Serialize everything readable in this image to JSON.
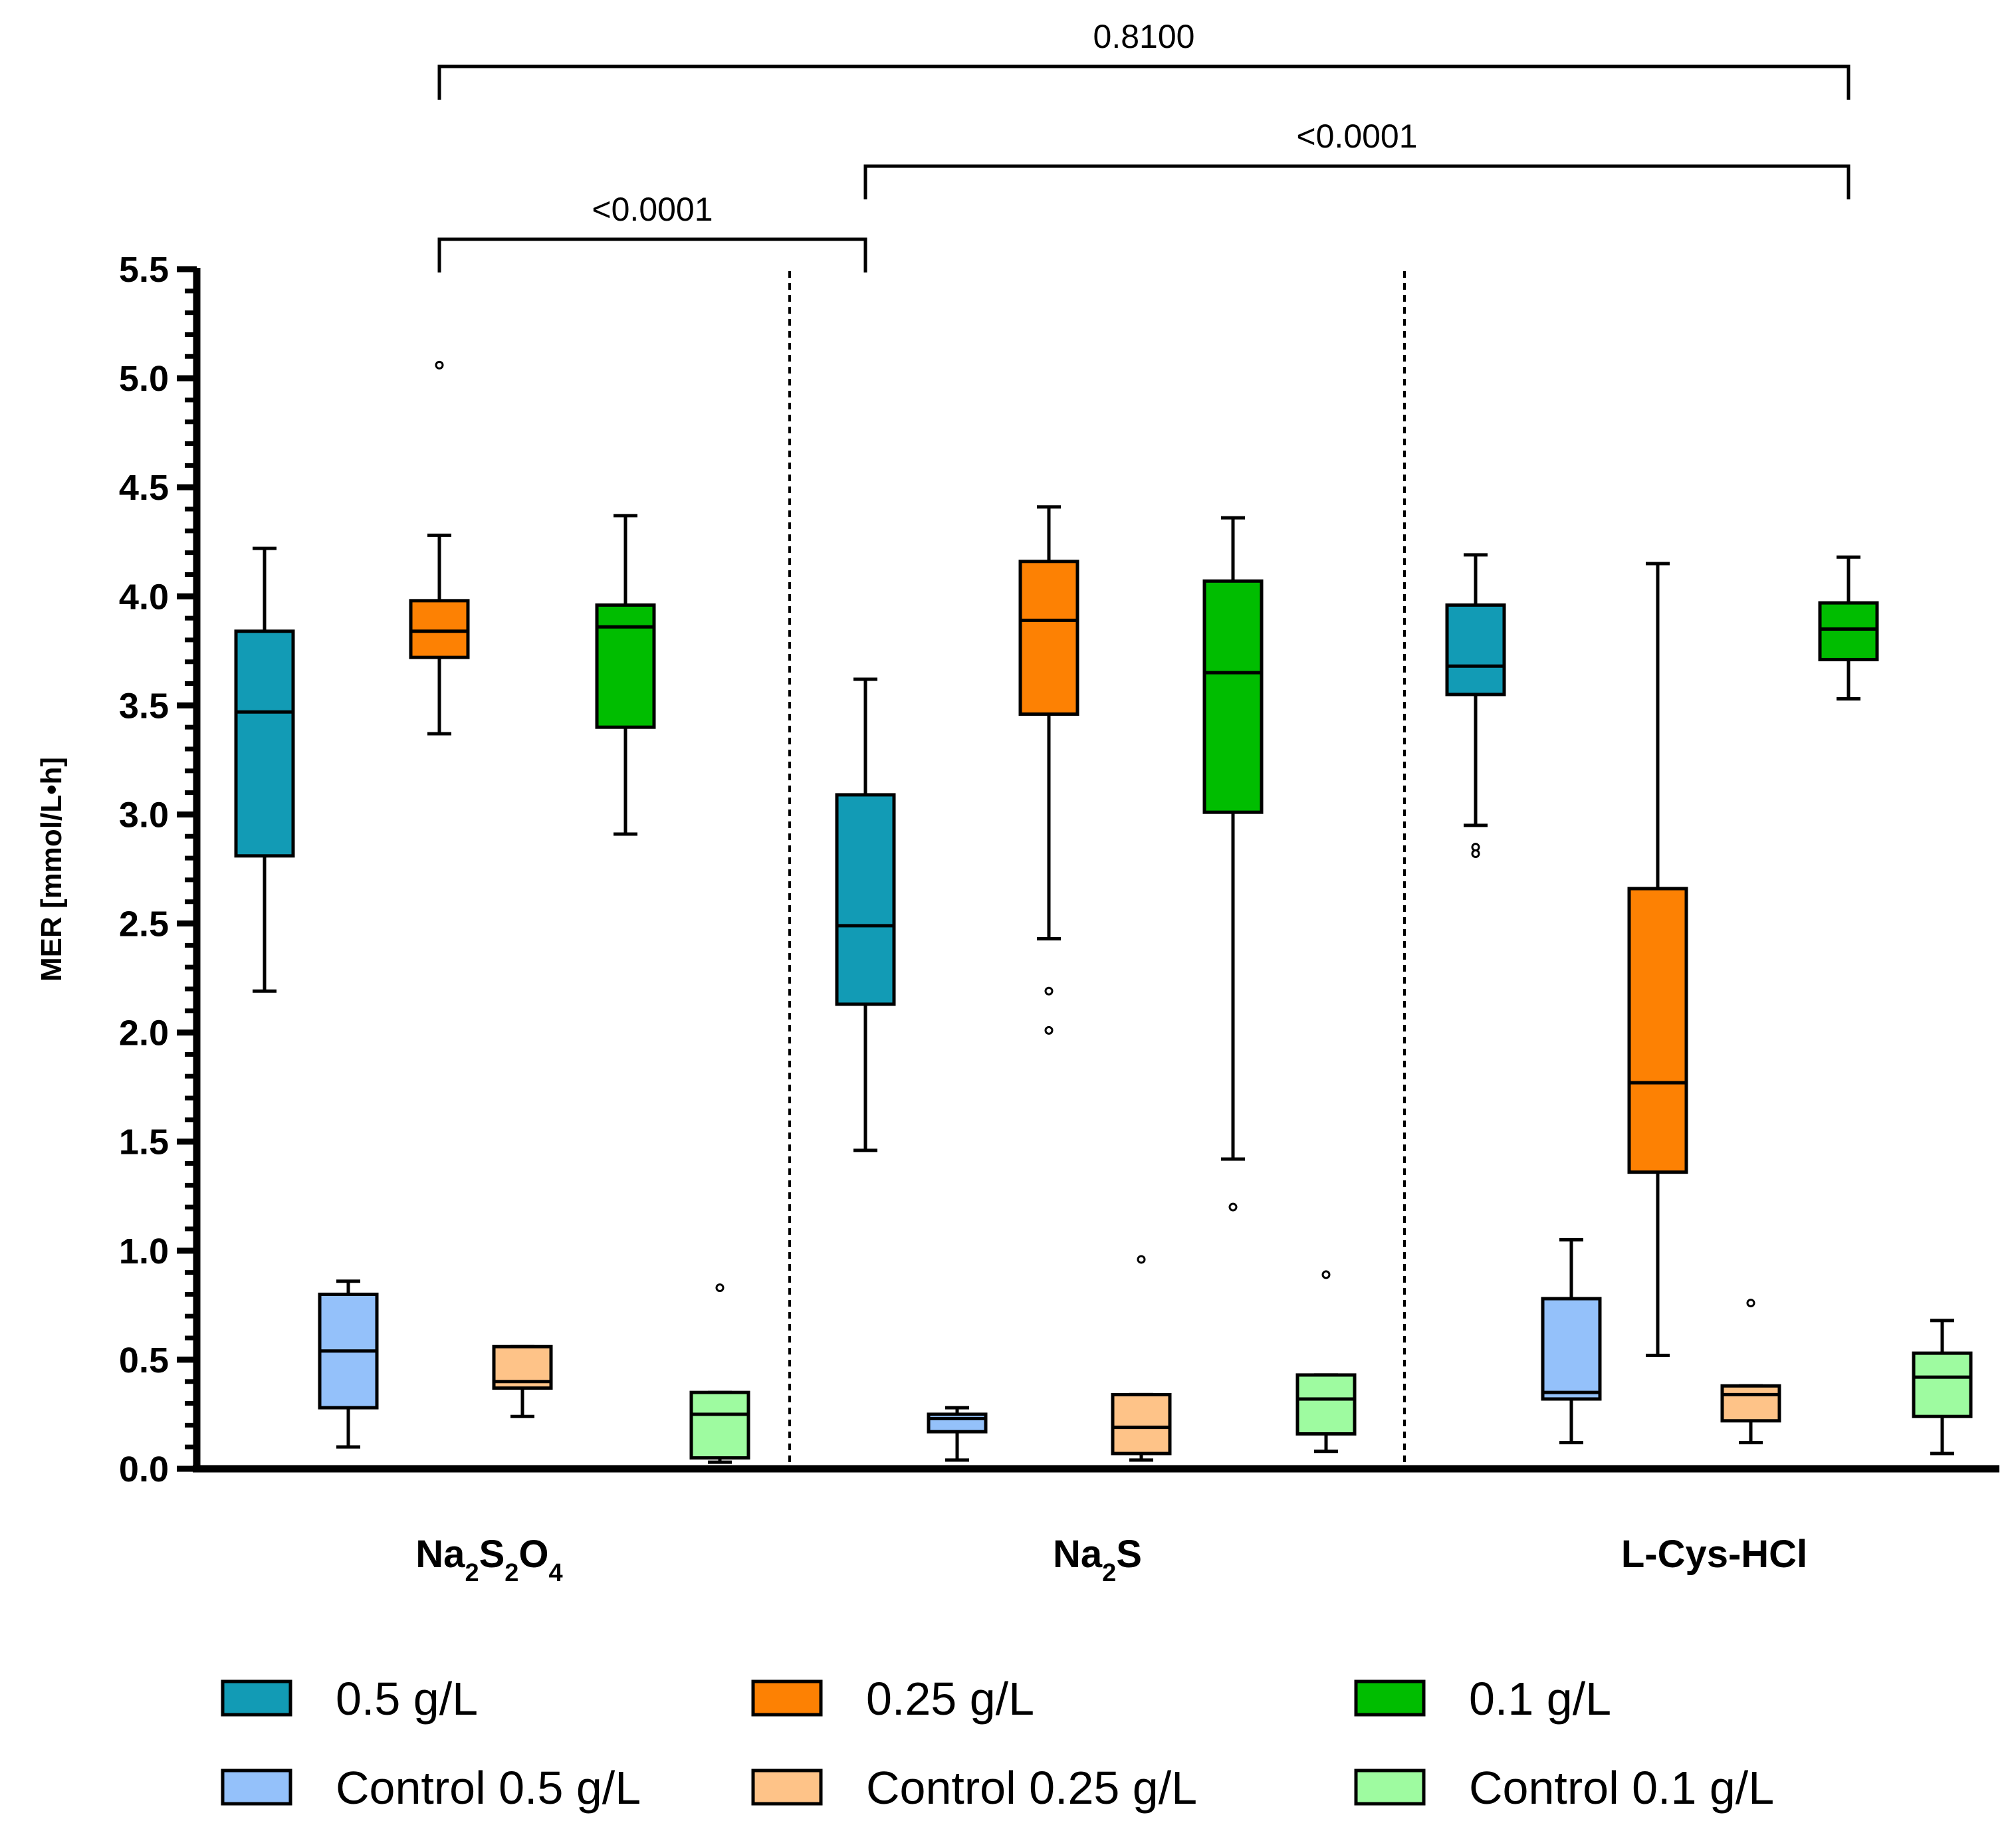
{
  "chart_data": {
    "type": "box",
    "ylabel": "MER [mmol/L•h]",
    "ylim": [
      0,
      5.5
    ],
    "yticks": [
      "0.0",
      "0.5",
      "1.0",
      "1.5",
      "2.0",
      "2.5",
      "3.0",
      "3.5",
      "4.0",
      "4.5",
      "5.0",
      "5.5"
    ],
    "groups": [
      {
        "label": "Na2S2O4",
        "base": "Na",
        "parts": [
          {
            "t": "Na"
          },
          {
            "t": "2",
            "sub": true
          },
          {
            "t": "S"
          },
          {
            "t": "2",
            "sub": true
          },
          {
            "t": "O"
          },
          {
            "t": "4",
            "sub": true
          }
        ]
      },
      {
        "label": "Na2S",
        "parts": [
          {
            "t": "Na"
          },
          {
            "t": "2",
            "sub": true
          },
          {
            "t": "S"
          }
        ]
      },
      {
        "label": "L-Cys-HCl",
        "parts": [
          {
            "t": "L-Cys-HCl"
          }
        ]
      }
    ],
    "series": [
      {
        "name": "0.5 g/L",
        "color": "#129bb5"
      },
      {
        "name": "Control 0.5 g/L",
        "color": "#94c1fa"
      },
      {
        "name": "0.25 g/L",
        "color": "#fd8103"
      },
      {
        "name": "Control 0.25 g/L",
        "color": "#fec388"
      },
      {
        "name": "0.1 g/L",
        "color": "#00bd00"
      },
      {
        "name": "Control 0.1 g/L",
        "color": "#9efba0"
      }
    ],
    "boxes": [
      {
        "group": 0,
        "series": 0,
        "min": 2.19,
        "q1": 2.81,
        "median": 3.47,
        "q3": 3.84,
        "max": 4.22,
        "outliers": []
      },
      {
        "group": 0,
        "series": 1,
        "min": 0.1,
        "q1": 0.28,
        "median": 0.54,
        "q3": 0.8,
        "max": 0.86,
        "outliers": []
      },
      {
        "group": 0,
        "series": 2,
        "min": 3.37,
        "q1": 3.72,
        "median": 3.84,
        "q3": 3.98,
        "max": 4.28,
        "outliers": [
          5.06
        ]
      },
      {
        "group": 0,
        "series": 3,
        "min": 0.24,
        "q1": 0.37,
        "median": 0.4,
        "q3": 0.56,
        "max": 0.56,
        "outliers": []
      },
      {
        "group": 0,
        "series": 4,
        "min": 2.91,
        "q1": 3.4,
        "median": 3.86,
        "q3": 3.96,
        "max": 4.37,
        "outliers": []
      },
      {
        "group": 0,
        "series": 5,
        "min": 0.03,
        "q1": 0.05,
        "median": 0.25,
        "q3": 0.35,
        "max": 0.35,
        "outliers": [
          0.83
        ]
      },
      {
        "group": 1,
        "series": 0,
        "min": 1.46,
        "q1": 2.13,
        "median": 2.49,
        "q3": 3.09,
        "max": 3.62,
        "outliers": []
      },
      {
        "group": 1,
        "series": 1,
        "min": 0.04,
        "q1": 0.17,
        "median": 0.23,
        "q3": 0.25,
        "max": 0.28,
        "outliers": []
      },
      {
        "group": 1,
        "series": 2,
        "min": 2.43,
        "q1": 3.46,
        "median": 3.89,
        "q3": 4.16,
        "max": 4.41,
        "outliers": [
          2.19,
          2.01
        ]
      },
      {
        "group": 1,
        "series": 3,
        "min": 0.04,
        "q1": 0.07,
        "median": 0.19,
        "q3": 0.34,
        "max": 0.34,
        "outliers": [
          0.96
        ]
      },
      {
        "group": 1,
        "series": 4,
        "min": 1.42,
        "q1": 3.01,
        "median": 3.65,
        "q3": 4.07,
        "max": 4.36,
        "outliers": [
          1.2
        ]
      },
      {
        "group": 1,
        "series": 5,
        "min": 0.08,
        "q1": 0.16,
        "median": 0.32,
        "q3": 0.43,
        "max": 0.43,
        "outliers": [
          0.89
        ]
      },
      {
        "group": 2,
        "series": 0,
        "min": 2.95,
        "q1": 3.55,
        "median": 3.68,
        "q3": 3.96,
        "max": 4.19,
        "outliers": [
          2.85,
          2.82
        ]
      },
      {
        "group": 2,
        "series": 1,
        "min": 0.12,
        "q1": 0.32,
        "median": 0.35,
        "q3": 0.78,
        "max": 1.05,
        "outliers": []
      },
      {
        "group": 2,
        "series": 2,
        "min": 0.52,
        "q1": 1.36,
        "median": 1.77,
        "q3": 2.66,
        "max": 4.15,
        "outliers": []
      },
      {
        "group": 2,
        "series": 3,
        "min": 0.12,
        "q1": 0.22,
        "median": 0.34,
        "q3": 0.38,
        "max": 0.38,
        "outliers": [
          0.76
        ]
      },
      {
        "group": 2,
        "series": 4,
        "min": 3.53,
        "q1": 3.71,
        "median": 3.85,
        "q3": 3.97,
        "max": 4.18,
        "outliers": []
      },
      {
        "group": 2,
        "series": 5,
        "min": 0.07,
        "q1": 0.24,
        "median": 0.42,
        "q3": 0.53,
        "max": 0.68,
        "outliers": []
      }
    ],
    "significance": [
      {
        "label": "0.8100",
        "from": "Na2S2O4 0.25 g/L",
        "to": "L-Cys-HCl 0.1 g/L"
      },
      {
        "label": "<0.0001",
        "from": "Na2S 0.5 g/L",
        "to": "L-Cys-HCl 0.1 g/L"
      },
      {
        "label": "<0.0001",
        "from": "Na2S2O4 0.25 g/L",
        "to": "Na2S 0.5 g/L"
      }
    ]
  },
  "legend": {
    "items": [
      {
        "label": "0.5 g/L",
        "color": "#129bb5"
      },
      {
        "label": "0.25 g/L",
        "color": "#fd8103"
      },
      {
        "label": "0.1 g/L",
        "color": "#00bd00"
      },
      {
        "label": "Control 0.5 g/L",
        "color": "#94c1fa"
      },
      {
        "label": "Control 0.25 g/L",
        "color": "#fec388"
      },
      {
        "label": "Control 0.1 g/L",
        "color": "#9efba0"
      }
    ]
  }
}
